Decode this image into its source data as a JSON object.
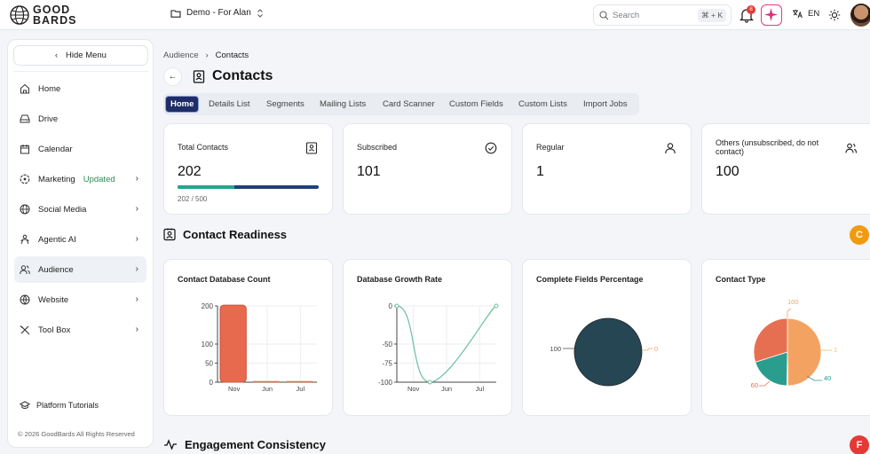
{
  "app": {
    "logo_line1": "GOOD",
    "logo_line2": "BARDS"
  },
  "workspace": {
    "label": "Demo - For Alan"
  },
  "search": {
    "placeholder": "Search",
    "shortcut": "⌘ + K"
  },
  "notifications": {
    "count": "8"
  },
  "language": "EN",
  "sidebar": {
    "hide_label": "Hide Menu",
    "items": [
      {
        "label": "Home",
        "icon": "home-icon"
      },
      {
        "label": "Drive",
        "icon": "drive-icon"
      },
      {
        "label": "Calendar",
        "icon": "calendar-icon"
      },
      {
        "label": "Marketing",
        "badge": "Updated",
        "icon": "marketing-icon"
      },
      {
        "label": "Social Media",
        "icon": "globe-icon"
      },
      {
        "label": "Agentic AI",
        "icon": "agent-icon"
      },
      {
        "label": "Audience",
        "icon": "users-icon"
      },
      {
        "label": "Website",
        "icon": "web-icon"
      },
      {
        "label": "Tool Box",
        "icon": "toolbox-icon"
      }
    ],
    "tutorials": "Platform Tutorials",
    "copyright": "© 2026 GoodBards All Rights Reserved"
  },
  "breadcrumb": {
    "parent": "Audience",
    "current": "Contacts"
  },
  "page": {
    "title": "Contacts"
  },
  "tabs": [
    "Home",
    "Details List",
    "Segments",
    "Mailing Lists",
    "Card Scanner",
    "Custom Fields",
    "Custom Lists",
    "Import Jobs"
  ],
  "stats": [
    {
      "label": "Total Contacts",
      "value": "202",
      "progress_text": "202 / 500",
      "progress": 0.404
    },
    {
      "label": "Subscribed",
      "value": "101"
    },
    {
      "label": "Regular",
      "value": "1"
    },
    {
      "label": "Others (unsubscribed, do not contact)",
      "value": "100"
    }
  ],
  "sections": {
    "readiness": {
      "title": "Contact Readiness",
      "grade": "C",
      "grade_color": "#f29a0f"
    },
    "engagement": {
      "title": "Engagement Consistency",
      "grade": "F",
      "grade_color": "#e53935"
    }
  },
  "chart_data": [
    {
      "type": "bar",
      "title": "Contact Database Count",
      "categories": [
        "Nov",
        "Jun",
        "Jul"
      ],
      "values": [
        202,
        0,
        0
      ],
      "ylim": [
        0,
        200
      ],
      "yticks": [
        "200",
        "100",
        "50",
        "0"
      ],
      "color": "#e76a4e"
    },
    {
      "type": "line",
      "title": "Database Growth Rate",
      "categories": [
        "Nov",
        "Jun",
        "Jul"
      ],
      "values": [
        0,
        -100,
        0
      ],
      "ylim": [
        -100,
        0
      ],
      "yticks": [
        "0",
        "-50",
        "-75",
        "-100"
      ],
      "color": "#6cbf9b"
    },
    {
      "type": "pie",
      "title": "Complete Fields Percentage",
      "slices": [
        {
          "label": "100",
          "value": 100,
          "color": "#264653"
        },
        {
          "label": "0",
          "value": 0,
          "color": "#f4a261"
        }
      ]
    },
    {
      "type": "pie",
      "title": "Contact Type",
      "slices": [
        {
          "label": "100",
          "value": 100,
          "color": "#f4a261"
        },
        {
          "label": "1",
          "value": 1,
          "color": "#e9c46a"
        },
        {
          "label": "40",
          "value": 40,
          "color": "#2a9d8f"
        },
        {
          "label": "60",
          "value": 60,
          "color": "#e76f51"
        }
      ]
    }
  ]
}
